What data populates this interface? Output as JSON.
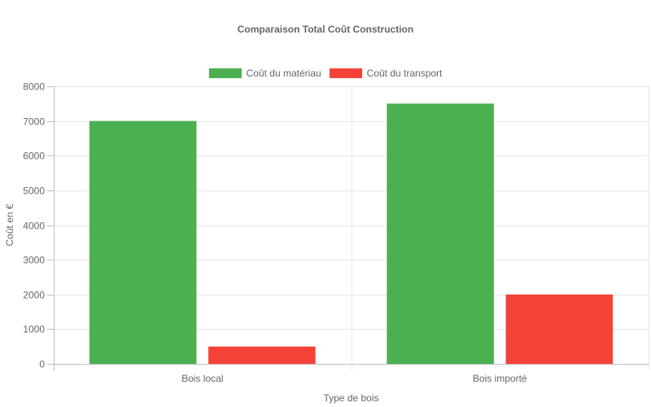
{
  "chart_data": {
    "type": "bar",
    "title": "Comparaison Total Coût Construction",
    "xlabel": "Type de bois",
    "ylabel": "Coût en €",
    "categories": [
      "Bois local",
      "Bois importé"
    ],
    "series": [
      {
        "name": "Coût du matériau",
        "color": "#4caf50",
        "values": [
          7000,
          7500
        ]
      },
      {
        "name": "Coût du transport",
        "color": "#f44336",
        "values": [
          500,
          2000
        ]
      }
    ],
    "ylim": [
      0,
      8000
    ],
    "yticks": [
      "0",
      "1000",
      "2000",
      "3000",
      "4000",
      "5000",
      "6000",
      "7000",
      "8000"
    ],
    "grid": true,
    "legend_position": "top"
  }
}
